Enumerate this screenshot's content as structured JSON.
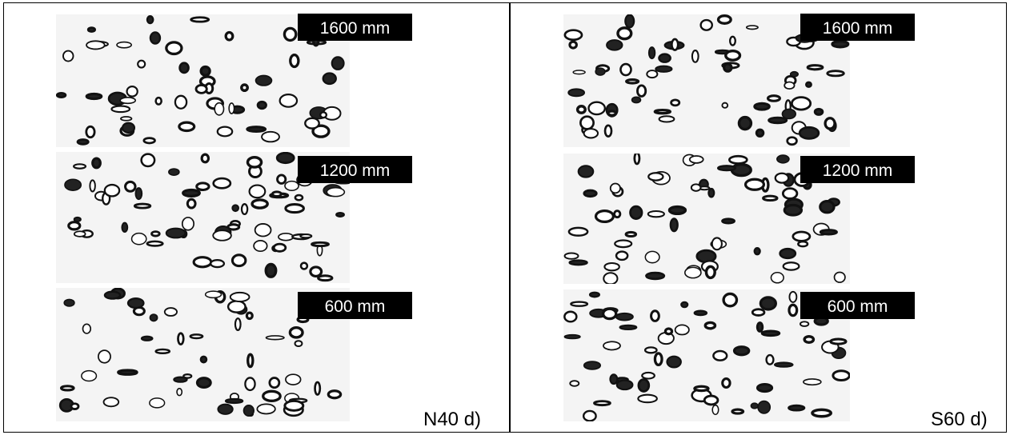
{
  "panels": [
    {
      "caption": "N40 d)",
      "images": [
        {
          "label": "1600 mm"
        },
        {
          "label": "1200 mm"
        },
        {
          "label": "600 mm"
        }
      ]
    },
    {
      "caption": "S60 d)",
      "images": [
        {
          "label": "1600 mm"
        },
        {
          "label": "1200 mm"
        },
        {
          "label": "600 mm"
        }
      ]
    }
  ]
}
